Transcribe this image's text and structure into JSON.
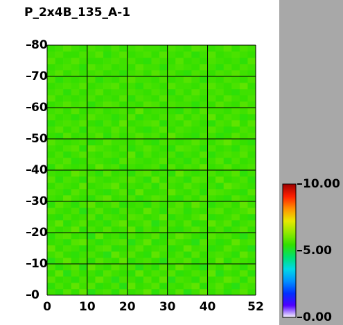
{
  "chart_data": {
    "type": "heatmap",
    "title": "P_2x4B_135_A-1",
    "xlim": [
      0,
      52
    ],
    "ylim": [
      0,
      80
    ],
    "xticks": [
      0,
      10,
      20,
      30,
      40,
      52
    ],
    "yticks": [
      0,
      10,
      20,
      30,
      40,
      50,
      60,
      70,
      80
    ],
    "grid": true,
    "colorbar": {
      "lim": [
        0,
        10
      ],
      "ticks": [
        {
          "value": 0,
          "label": "0.00"
        },
        {
          "value": 5,
          "label": "5.00"
        },
        {
          "value": 10,
          "label": "10.00"
        }
      ],
      "colors": [
        "#ffffff",
        "#5000ff",
        "#0030ff",
        "#0090ff",
        "#00d8e8",
        "#00e070",
        "#30e000",
        "#90e800",
        "#e8e800",
        "#ff9000",
        "#ff2000",
        "#a00000"
      ]
    },
    "values": [
      [
        5.6,
        5.4,
        5.8,
        5.5,
        5.9,
        5.3,
        5.6,
        5.7,
        5.4,
        5.8,
        5.5,
        5.6,
        5.9,
        5.4,
        5.7,
        5.5,
        5.8,
        5.3,
        5.6,
        5.9,
        5.5,
        5.7,
        5.4,
        5.6,
        5.8,
        5.5
      ],
      [
        5.4,
        5.7,
        5.5,
        5.9,
        5.6,
        5.8,
        5.4,
        5.5,
        5.7,
        5.3,
        5.9,
        5.5,
        5.6,
        5.8,
        5.4,
        5.6,
        5.5,
        5.7,
        5.9,
        5.4,
        5.6,
        5.8,
        5.5,
        5.3,
        5.7,
        5.6
      ],
      [
        5.8,
        5.5,
        5.6,
        5.4,
        5.7,
        5.5,
        5.9,
        5.6,
        5.3,
        5.7,
        5.6,
        5.4,
        5.8,
        5.5,
        5.9,
        5.3,
        5.7,
        5.6,
        5.4,
        5.8,
        5.5,
        5.6,
        5.9,
        5.7,
        5.4,
        5.8
      ],
      [
        5.5,
        5.9,
        5.3,
        5.7,
        5.5,
        5.6,
        5.4,
        5.8,
        5.6,
        5.5,
        5.4,
        5.9,
        5.5,
        5.7,
        5.6,
        5.8,
        5.4,
        5.5,
        5.7,
        5.6,
        5.9,
        5.3,
        5.6,
        5.5,
        5.8,
        5.4
      ],
      [
        5.7,
        5.4,
        5.6,
        5.8,
        5.3,
        5.9,
        5.6,
        5.5,
        5.8,
        5.6,
        5.7,
        5.3,
        5.6,
        5.4,
        5.8,
        5.5,
        5.9,
        5.6,
        5.5,
        5.3,
        5.7,
        5.5,
        5.8,
        5.6,
        5.4,
        5.7
      ],
      [
        5.3,
        5.6,
        5.9,
        5.5,
        5.7,
        5.4,
        5.8,
        5.6,
        5.5,
        5.9,
        5.4,
        5.6,
        5.7,
        5.5,
        5.3,
        5.7,
        5.6,
        5.8,
        5.4,
        5.6,
        5.5,
        5.9,
        5.4,
        5.7,
        5.6,
        5.5
      ],
      [
        5.6,
        5.8,
        5.5,
        5.4,
        5.6,
        5.7,
        5.5,
        5.3,
        5.9,
        5.6,
        5.8,
        5.5,
        5.4,
        5.9,
        5.6,
        5.5,
        5.7,
        5.4,
        5.8,
        5.5,
        5.6,
        5.7,
        5.6,
        5.4,
        5.9,
        5.6
      ],
      [
        5.9,
        5.5,
        5.7,
        5.6,
        5.4,
        5.5,
        5.7,
        5.8,
        5.4,
        5.5,
        5.6,
        5.8,
        5.5,
        5.6,
        5.7,
        5.4,
        5.5,
        5.9,
        5.6,
        5.7,
        5.4,
        5.5,
        5.8,
        5.6,
        5.5,
        5.3
      ],
      [
        5.5,
        5.6,
        5.4,
        5.8,
        5.9,
        5.6,
        5.4,
        5.6,
        5.7,
        5.8,
        5.3,
        5.6,
        5.9,
        5.4,
        5.5,
        5.8,
        5.6,
        5.5,
        5.3,
        5.8,
        5.6,
        5.4,
        5.5,
        5.9,
        5.6,
        5.7
      ],
      [
        5.4,
        5.7,
        5.8,
        5.5,
        5.6,
        5.3,
        5.9,
        5.5,
        5.6,
        5.4,
        5.7,
        5.5,
        5.6,
        5.8,
        5.4,
        5.6,
        5.9,
        5.7,
        5.5,
        5.4,
        5.8,
        5.6,
        5.7,
        5.5,
        5.3,
        5.6
      ],
      [
        5.7,
        5.5,
        5.6,
        5.9,
        5.4,
        5.7,
        5.5,
        5.8,
        5.5,
        5.6,
        5.9,
        5.4,
        5.7,
        5.5,
        5.8,
        5.5,
        5.4,
        5.6,
        5.8,
        5.6,
        5.5,
        5.7,
        5.4,
        5.6,
        5.8,
        5.5
      ],
      [
        5.6,
        5.9,
        5.4,
        5.6,
        5.8,
        5.5,
        5.6,
        5.4,
        5.7,
        5.9,
        5.5,
        5.6,
        5.8,
        5.3,
        5.6,
        5.7,
        5.5,
        5.8,
        5.4,
        5.5,
        5.9,
        5.6,
        5.8,
        5.4,
        5.6,
        5.7
      ],
      [
        5.5,
        5.4,
        5.7,
        5.5,
        5.6,
        5.8,
        5.4,
        5.7,
        5.6,
        5.5,
        5.8,
        5.7,
        5.5,
        5.6,
        5.9,
        5.4,
        5.6,
        5.5,
        5.7,
        5.9,
        5.4,
        5.5,
        5.6,
        5.8,
        5.5,
        5.4
      ],
      [
        5.8,
        5.6,
        5.5,
        5.7,
        5.3,
        5.6,
        5.8,
        5.5,
        5.4,
        5.7,
        5.6,
        5.5,
        5.9,
        5.6,
        5.4,
        5.8,
        5.7,
        5.4,
        5.6,
        5.5,
        5.7,
        5.8,
        5.5,
        5.6,
        5.7,
        5.9
      ],
      [
        5.4,
        5.8,
        5.6,
        5.4,
        5.7,
        5.9,
        5.5,
        5.6,
        5.8,
        5.4,
        5.5,
        5.6,
        5.4,
        5.7,
        5.5,
        5.6,
        5.8,
        5.5,
        5.9,
        5.6,
        5.4,
        5.6,
        5.7,
        5.5,
        5.9,
        5.6
      ],
      [
        5.6,
        5.5,
        5.9,
        5.6,
        5.5,
        5.4,
        5.7,
        5.9,
        5.5,
        5.6,
        5.7,
        5.4,
        5.6,
        5.8,
        5.7,
        5.5,
        5.4,
        5.7,
        5.5,
        5.8,
        5.6,
        5.5,
        5.4,
        5.8,
        5.6,
        5.5
      ],
      [
        5.7,
        5.6,
        5.4,
        5.8,
        5.6,
        5.7,
        5.5,
        5.4,
        5.6,
        5.8,
        5.4,
        5.9,
        5.5,
        5.5,
        5.6,
        5.9,
        5.6,
        5.5,
        5.7,
        5.4,
        5.8,
        5.7,
        5.6,
        5.5,
        5.4,
        5.8
      ],
      [
        5.5,
        5.7,
        5.6,
        5.5,
        5.9,
        5.5,
        5.6,
        5.7,
        5.9,
        5.5,
        5.6,
        5.5,
        5.7,
        5.4,
        5.8,
        5.6,
        5.5,
        5.8,
        5.6,
        5.5,
        5.6,
        5.4,
        5.9,
        5.7,
        5.6,
        5.5
      ],
      [
        5.8,
        5.4,
        5.7,
        5.6,
        5.4,
        5.8,
        5.6,
        5.5,
        5.6,
        5.7,
        5.8,
        5.6,
        5.4,
        5.9,
        5.5,
        5.7,
        5.6,
        5.4,
        5.8,
        5.7,
        5.5,
        5.9,
        5.5,
        5.6,
        5.7,
        5.4
      ],
      [
        5.6,
        5.5,
        5.5,
        5.9,
        5.7,
        5.6,
        5.4,
        5.8,
        5.5,
        5.6,
        5.4,
        5.7,
        5.8,
        5.5,
        5.6,
        5.4,
        5.9,
        5.6,
        5.5,
        5.6,
        5.7,
        5.5,
        5.6,
        5.8,
        5.4,
        5.6
      ],
      [
        5.4,
        5.8,
        5.6,
        5.5,
        5.6,
        5.5,
        5.9,
        5.6,
        5.7,
        5.4,
        5.6,
        5.5,
        5.6,
        5.7,
        5.4,
        5.8,
        5.5,
        5.7,
        5.6,
        5.9,
        5.5,
        5.6,
        5.8,
        5.5,
        5.6,
        5.7
      ],
      [
        5.7,
        5.6,
        5.8,
        5.4,
        5.5,
        5.7,
        5.6,
        5.5,
        5.4,
        5.8,
        5.7,
        5.6,
        5.5,
        5.6,
        5.8,
        5.5,
        5.6,
        5.4,
        5.7,
        5.5,
        5.6,
        5.8,
        5.4,
        5.7,
        5.5,
        5.6
      ],
      [
        5.5,
        5.7,
        5.4,
        5.6,
        5.8,
        5.6,
        5.5,
        5.7,
        5.6,
        5.5,
        5.9,
        5.4,
        5.7,
        5.5,
        5.6,
        5.7,
        5.4,
        5.6,
        5.5,
        5.8,
        5.4,
        5.6,
        5.7,
        5.6,
        5.8,
        5.5
      ],
      [
        5.6,
        5.5,
        5.7,
        5.8,
        5.4,
        5.9,
        5.7,
        5.6,
        5.5,
        5.7,
        5.4,
        5.6,
        5.8,
        5.6,
        5.5,
        5.4,
        5.8,
        5.7,
        5.6,
        5.4,
        5.7,
        5.5,
        5.6,
        5.4,
        5.7,
        5.6
      ],
      [
        5.8,
        5.6,
        5.5,
        5.6,
        5.7,
        5.4,
        5.5,
        5.8,
        5.6,
        5.6,
        5.5,
        5.7,
        5.5,
        5.4,
        5.7,
        5.6,
        5.5,
        5.6,
        5.8,
        5.6,
        5.5,
        5.7,
        5.9,
        5.6,
        5.5,
        5.4
      ],
      [
        5.5,
        5.4,
        5.8,
        5.5,
        5.6,
        5.6,
        5.8,
        5.4,
        5.7,
        5.5,
        5.6,
        5.8,
        5.6,
        5.7,
        5.5,
        5.9,
        5.6,
        5.5,
        5.4,
        5.7,
        5.6,
        5.4,
        5.5,
        5.8,
        5.6,
        5.7
      ],
      [
        5.6,
        5.8,
        5.5,
        5.7,
        5.4,
        5.7,
        5.6,
        5.5,
        5.8,
        5.6,
        5.7,
        5.5,
        5.4,
        5.6,
        5.8,
        5.5,
        5.7,
        5.6,
        5.5,
        5.6,
        5.8,
        5.6,
        5.4,
        5.5,
        5.7,
        5.6
      ],
      [
        5.4,
        5.6,
        5.7,
        5.6,
        5.8,
        5.5,
        5.4,
        5.7,
        5.5,
        5.9,
        5.5,
        5.6,
        5.7,
        5.8,
        5.4,
        5.6,
        5.5,
        5.8,
        5.6,
        5.5,
        5.4,
        5.7,
        5.6,
        5.9,
        5.5,
        5.8
      ],
      [
        5.7,
        5.5,
        5.6,
        5.4,
        5.6,
        5.8,
        5.6,
        5.6,
        5.4,
        5.6,
        5.8,
        5.4,
        5.6,
        5.5,
        5.7,
        5.6,
        5.8,
        5.5,
        5.7,
        5.6,
        5.9,
        5.5,
        5.7,
        5.6,
        5.4,
        5.5
      ],
      [
        5.6,
        5.7,
        5.5,
        5.8,
        5.5,
        5.6,
        5.7,
        5.5,
        5.6,
        5.7,
        5.5,
        5.9,
        5.5,
        5.6,
        5.6,
        5.5,
        5.4,
        5.7,
        5.5,
        5.8,
        5.6,
        5.6,
        5.5,
        5.7,
        5.6,
        5.8
      ],
      [
        5.5,
        5.6,
        5.8,
        5.6,
        5.7,
        5.4,
        5.6,
        5.8,
        5.7,
        5.5,
        5.6,
        5.5,
        5.8,
        5.7,
        5.5,
        5.7,
        5.6,
        5.6,
        5.4,
        5.6,
        5.5,
        5.8,
        5.6,
        5.5,
        5.8,
        5.6
      ],
      [
        5.8,
        5.5,
        5.6,
        5.5,
        5.6,
        5.7,
        5.5,
        5.6,
        5.5,
        5.8,
        5.4,
        5.7,
        5.6,
        5.5,
        5.8,
        5.6,
        5.5,
        5.7,
        5.6,
        5.5,
        5.7,
        5.5,
        5.8,
        5.6,
        5.5,
        5.7
      ],
      [
        5.6,
        5.7,
        5.4,
        5.7,
        5.5,
        5.6,
        5.8,
        5.5,
        5.6,
        5.6,
        5.7,
        5.6,
        5.5,
        5.7,
        5.6,
        5.4,
        5.7,
        5.5,
        5.8,
        5.6,
        5.6,
        5.7,
        5.5,
        5.4,
        5.6,
        5.6
      ],
      [
        5.5,
        5.6,
        5.7,
        5.6,
        5.8,
        5.5,
        5.6,
        5.7,
        5.8,
        5.5,
        5.6,
        5.4,
        5.7,
        5.6,
        5.5,
        5.8,
        5.6,
        5.6,
        5.5,
        5.7,
        5.8,
        5.6,
        5.5,
        5.7,
        5.9,
        5.5
      ],
      [
        5.7,
        5.4,
        5.6,
        5.5,
        5.6,
        5.7,
        5.4,
        5.6,
        5.5,
        5.7,
        5.8,
        5.6,
        5.6,
        5.5,
        5.7,
        5.5,
        5.6,
        5.8,
        5.6,
        5.4,
        5.6,
        5.5,
        5.7,
        5.6,
        5.5,
        5.7
      ],
      [
        5.6,
        5.8,
        5.5,
        5.7,
        5.5,
        5.6,
        5.7,
        5.5,
        5.6,
        5.4,
        5.6,
        5.7,
        5.5,
        5.8,
        5.6,
        5.7,
        5.5,
        5.4,
        5.7,
        5.6,
        5.5,
        5.7,
        5.6,
        5.8,
        5.6,
        5.5
      ],
      [
        5.5,
        5.6,
        5.7,
        5.6,
        5.4,
        5.8,
        5.6,
        5.7,
        5.5,
        5.6,
        5.5,
        5.8,
        5.6,
        5.6,
        5.4,
        5.6,
        5.7,
        5.6,
        5.5,
        5.8,
        5.6,
        5.4,
        5.7,
        5.5,
        5.7,
        5.6
      ],
      [
        5.8,
        5.5,
        5.6,
        5.8,
        5.6,
        5.5,
        5.5,
        5.6,
        5.7,
        5.6,
        5.7,
        5.5,
        5.4,
        5.7,
        5.6,
        5.5,
        5.8,
        5.5,
        5.6,
        5.5,
        5.7,
        5.6,
        5.5,
        5.6,
        5.4,
        5.8
      ],
      [
        5.6,
        5.7,
        5.5,
        5.5,
        5.7,
        5.6,
        5.8,
        5.4,
        5.6,
        5.8,
        5.5,
        5.6,
        5.7,
        5.5,
        5.8,
        5.6,
        5.5,
        5.7,
        5.4,
        5.6,
        5.8,
        5.5,
        5.6,
        5.7,
        5.6,
        5.5
      ],
      [
        5.5,
        5.6,
        5.8,
        5.6,
        5.5,
        5.7,
        5.6,
        5.5,
        5.7,
        5.5,
        5.6,
        5.7,
        5.6,
        5.6,
        5.5,
        5.7,
        5.6,
        5.5,
        5.8,
        5.7,
        5.5,
        5.6,
        5.8,
        5.5,
        5.7,
        5.6
      ]
    ]
  }
}
